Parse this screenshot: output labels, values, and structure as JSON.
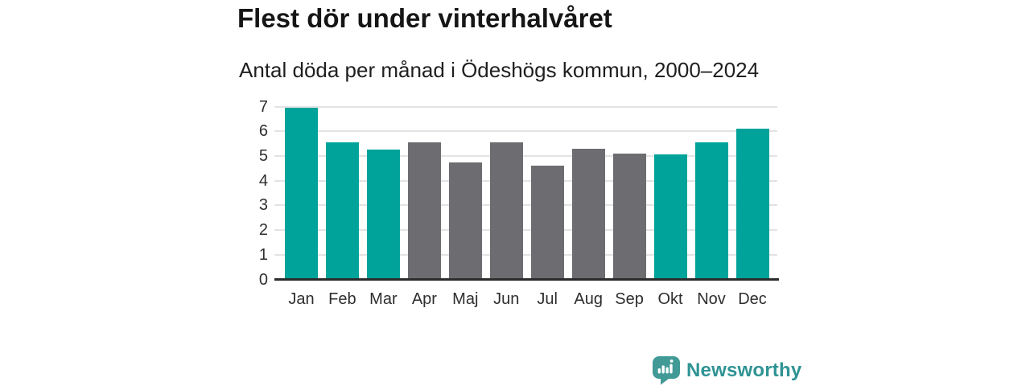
{
  "header": {
    "title": "Flest dör under vinterhalvåret",
    "subtitle": "Antal döda per månad i Ödeshögs kommun, 2000–2024"
  },
  "chart_data": {
    "type": "bar",
    "title": "Flest dör under vinterhalvåret",
    "subtitle": "Antal döda per månad i Ödeshögs kommun, 2000–2024",
    "categories": [
      "Jan",
      "Feb",
      "Mar",
      "Apr",
      "Maj",
      "Jun",
      "Jul",
      "Aug",
      "Sep",
      "Okt",
      "Nov",
      "Dec"
    ],
    "values": [
      6.95,
      5.55,
      5.25,
      5.55,
      4.75,
      5.55,
      4.6,
      5.3,
      5.1,
      5.05,
      5.55,
      6.1
    ],
    "colors": [
      "#00a39a",
      "#00a39a",
      "#00a39a",
      "#6c6c71",
      "#6c6c71",
      "#6c6c71",
      "#6c6c71",
      "#6c6c71",
      "#6c6c71",
      "#00a39a",
      "#00a39a",
      "#00a39a"
    ],
    "highlight_color": "#00a39a",
    "base_color": "#6c6c71",
    "highlight_months": [
      "Jan",
      "Feb",
      "Mar",
      "Okt",
      "Nov",
      "Dec"
    ],
    "xlabel": "",
    "ylabel": "",
    "ylim": [
      0,
      7
    ],
    "yticks": [
      0,
      1,
      2,
      3,
      4,
      5,
      6,
      7
    ],
    "grid": "horizontal",
    "grid_color": "#e3e3e5",
    "axis_color": "#2b2b2b",
    "tick_color": "#2e2e2e",
    "legend": "none"
  },
  "footer": {
    "brand": "Newsworthy",
    "brand_color": "#2f9394",
    "logo_bubble_color": "#419a96",
    "logo_icon": "speech-bubble-bar-chart-exclamation"
  }
}
